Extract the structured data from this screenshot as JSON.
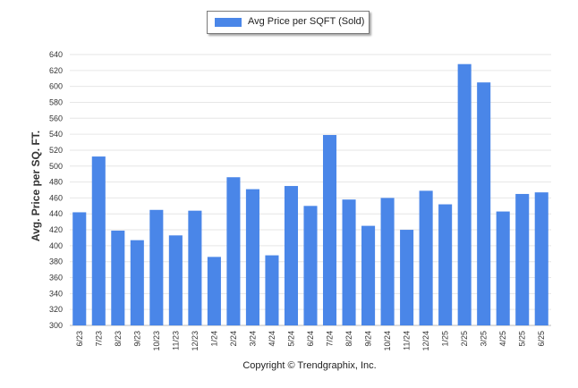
{
  "chart_data": {
    "type": "bar",
    "categories": [
      "6/23",
      "7/23",
      "8/23",
      "9/23",
      "10/23",
      "11/23",
      "12/23",
      "1/24",
      "2/24",
      "3/24",
      "4/24",
      "5/24",
      "6/24",
      "7/24",
      "8/24",
      "9/24",
      "10/24",
      "11/24",
      "12/24",
      "1/25",
      "2/25",
      "3/25",
      "4/25",
      "5/25",
      "6/25"
    ],
    "series": [
      {
        "name": "Avg Price per SQFT (Sold)",
        "values": [
          442,
          512,
          419,
          407,
          445,
          413,
          444,
          386,
          486,
          471,
          388,
          475,
          450,
          539,
          458,
          425,
          460,
          420,
          469,
          452,
          628,
          605,
          443,
          465,
          467
        ]
      }
    ],
    "ylabel": "Avg. Price per SQ. FT.",
    "xlabel": "",
    "ylim": [
      300,
      640
    ],
    "ytick_step": 20,
    "grid": true,
    "legend_position": "top-center",
    "bar_color": "#4a86e8"
  },
  "footer": {
    "copyright": "Copyright © Trendgraphix, Inc."
  }
}
